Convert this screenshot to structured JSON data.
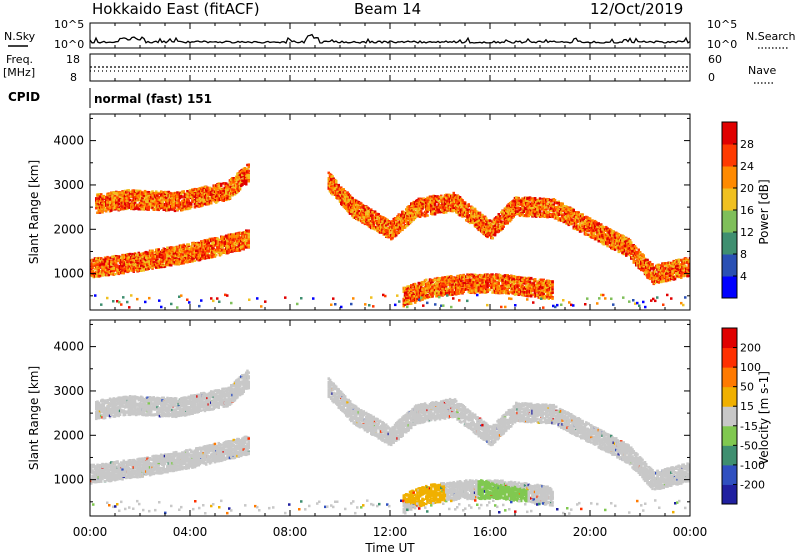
{
  "header": {
    "station": "Hokkaido East (fitACF)",
    "beam": "Beam 14",
    "date": "12/Oct/2019"
  },
  "noise_panel": {
    "left_label": "N.Sky",
    "right_label": "N.Search",
    "left_ticks": [
      "10^5",
      "10^0"
    ],
    "right_ticks": [
      "10^5",
      "10^0"
    ]
  },
  "freq_panel": {
    "left_label_1": "Freq.",
    "left_label_2": "[MHz]",
    "right_label": "Nave",
    "left_ticks": [
      "18",
      "8"
    ],
    "right_ticks": [
      "60",
      "0"
    ]
  },
  "cpid_panel": {
    "label": "CPID",
    "value": "normal (fast) 151"
  },
  "chart_data": [
    {
      "type": "heatmap",
      "quantity": "Power",
      "ylabel": "Slant Range [km]",
      "ytick_labels": [
        "1000",
        "2000",
        "3000",
        "4000"
      ],
      "ylim": [
        180,
        4600
      ],
      "xlim": [
        0,
        24
      ],
      "colorbar": {
        "label": "Power [dB]",
        "tick_labels": [
          "4",
          "8",
          "12",
          "16",
          "20",
          "24",
          "28"
        ],
        "colors": [
          "#0000ff",
          "#2a50b4",
          "#3f8f70",
          "#7fbf5a",
          "#f0c020",
          "#ff8a00",
          "#ff3a00",
          "#e00000"
        ]
      },
      "features": [
        {
          "x": [
            0,
            2,
            4,
            6.3
          ],
          "y": [
            1150,
            1300,
            1500,
            1800
          ]
        },
        {
          "x": [
            0.2,
            1.5,
            3.5,
            5.5,
            6.3
          ],
          "y": [
            2600,
            2700,
            2650,
            2900,
            3300
          ]
        },
        {
          "x": [
            9.5,
            10.5,
            12,
            13,
            14.5,
            16,
            17,
            18.5,
            20.5,
            21.5,
            22.5,
            24
          ],
          "y": [
            3100,
            2500,
            2000,
            2500,
            2650,
            2000,
            2550,
            2500,
            1900,
            1600,
            1000,
            1200
          ]
        },
        {
          "x": [
            12.5,
            13.5,
            15,
            16.5,
            18.5
          ],
          "y": [
            500,
            700,
            800,
            800,
            650
          ]
        }
      ]
    },
    {
      "type": "heatmap",
      "quantity": "Velocity",
      "ylabel": "Slant Range [km]",
      "xlabel": "Time UT",
      "xtick_labels": [
        "00:00",
        "04:00",
        "08:00",
        "12:00",
        "16:00",
        "20:00",
        "00:00"
      ],
      "ytick_labels": [
        "1000",
        "2000",
        "3000",
        "4000"
      ],
      "ylim": [
        180,
        4600
      ],
      "xlim": [
        0,
        24
      ],
      "colorbar": {
        "label": "Velocity [m s-1]",
        "tick_labels": [
          "200",
          "100",
          "50",
          "15",
          "-15",
          "-50",
          "-100",
          "-200"
        ],
        "colors": [
          "#2020a0",
          "#3050c0",
          "#3f8f70",
          "#80c850",
          "#c8c8c8",
          "#f0b000",
          "#ff7a00",
          "#ff3000",
          "#e00000"
        ]
      },
      "features": [
        {
          "x": [
            12,
            13,
            14.2
          ],
          "y": [
            900,
            700,
            650
          ],
          "color": "#f0b000"
        },
        {
          "x": [
            15.5,
            16.5,
            17.5
          ],
          "y": [
            800,
            650,
            550
          ],
          "color": "#80c850"
        }
      ]
    }
  ]
}
